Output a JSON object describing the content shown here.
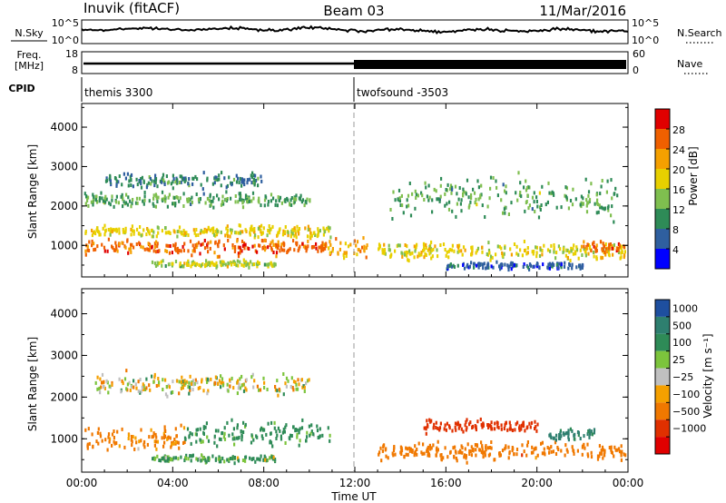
{
  "header": {
    "station": "Inuvik (fitACF)",
    "beam": "Beam 03",
    "date": "11/Mar/2016"
  },
  "noise_panel": {
    "left_label": "N.Sky",
    "right_label": "N.Search",
    "left_ticks": [
      "10^5",
      "10^0"
    ],
    "right_ticks": [
      "10^5",
      "10^0"
    ]
  },
  "freq_panel": {
    "left_label_line1": "Freq.",
    "left_label_line2": "[MHz]",
    "right_label": "Nave",
    "left_ticks": [
      "18",
      "8"
    ],
    "right_ticks": [
      "60",
      "0"
    ]
  },
  "cpid_panel": {
    "label": "CPID",
    "segments": [
      {
        "name": "themis 3300",
        "start_hour": 0
      },
      {
        "name": "twofsound -3503",
        "start_hour": 12
      }
    ]
  },
  "power_panel": {
    "ylabel": "Slant Range [km]",
    "yticks": [
      "4000",
      "3000",
      "2000",
      "1000"
    ],
    "colorbar_label": "Power [dB]",
    "colorbar_ticks": [
      "28",
      "24",
      "20",
      "16",
      "12",
      "8",
      "4"
    ],
    "colors": [
      "#0000ff",
      "#2f5f9f",
      "#2e8b57",
      "#7fbf4f",
      "#e8d000",
      "#f5a000",
      "#f06000",
      "#e00000"
    ]
  },
  "velocity_panel": {
    "ylabel": "Slant Range [km]",
    "yticks": [
      "4000",
      "3000",
      "2000",
      "1000"
    ],
    "colorbar_label": "Velocity [m s⁻¹]",
    "colorbar_ticks": [
      "1000",
      "500",
      "100",
      "25",
      "−25",
      "−100",
      "−500",
      "−1000"
    ],
    "colors": [
      "#1e4f9f",
      "#2e7f6f",
      "#2e8b57",
      "#7cc43c",
      "#c0c0c0",
      "#f5a000",
      "#f07800",
      "#e03000",
      "#e00000"
    ]
  },
  "x_axis": {
    "label": "Time UT",
    "ticks": [
      "00:00",
      "04:00",
      "08:00",
      "12:00",
      "16:00",
      "20:00",
      "00:00"
    ]
  },
  "chart_data": {
    "type": "heatmap",
    "title": "Inuvik (fitACF)   Beam 03   11/Mar/2016",
    "xlabel": "Time UT",
    "ylabel": "Slant Range [km]",
    "xlim_hours": [
      0,
      24
    ],
    "ylim_km": [
      200,
      4600
    ],
    "grid": false,
    "panels": [
      {
        "name": "Power",
        "units": "dB",
        "colorbar_range": [
          0,
          32
        ],
        "scatter_regions": [
          {
            "t_start": 0.1,
            "t_end": 10.9,
            "range_center_km": 950,
            "range_halfwidth_km": 280,
            "value_dB": 26
          },
          {
            "t_start": 0.1,
            "t_end": 10.9,
            "range_center_km": 1350,
            "range_halfwidth_km": 200,
            "value_dB": 18
          },
          {
            "t_start": 0.1,
            "t_end": 10.0,
            "range_center_km": 2150,
            "range_halfwidth_km": 260,
            "value_dB": 12
          },
          {
            "t_start": 1.0,
            "t_end": 8.0,
            "range_center_km": 2650,
            "range_halfwidth_km": 250,
            "value_dB": 9
          },
          {
            "t_start": 3.0,
            "t_end": 8.5,
            "range_center_km": 520,
            "range_halfwidth_km": 120,
            "value_dB": 16
          },
          {
            "t_start": 10.8,
            "t_end": 12.5,
            "range_center_km": 900,
            "range_halfwidth_km": 350,
            "value_dB": 22
          },
          {
            "t_start": 13.0,
            "t_end": 23.9,
            "range_center_km": 850,
            "range_halfwidth_km": 300,
            "value_dB": 18
          },
          {
            "t_start": 16.0,
            "t_end": 22.0,
            "range_center_km": 480,
            "range_halfwidth_km": 120,
            "value_dB": 6
          },
          {
            "t_start": 22.0,
            "t_end": 23.9,
            "range_center_km": 950,
            "range_halfwidth_km": 200,
            "value_dB": 26
          },
          {
            "t_start": 13.5,
            "t_end": 23.5,
            "range_center_km": 2200,
            "range_halfwidth_km": 700,
            "value_dB": 12
          }
        ]
      },
      {
        "name": "Velocity",
        "units": "m s-1",
        "colorbar_range": [
          -1000,
          1000
        ],
        "scatter_regions": [
          {
            "t_start": 0.1,
            "t_end": 4.5,
            "range_center_km": 1000,
            "range_halfwidth_km": 400,
            "value_mps": -200
          },
          {
            "t_start": 4.5,
            "t_end": 10.9,
            "range_center_km": 1100,
            "range_halfwidth_km": 400,
            "value_mps": 200
          },
          {
            "t_start": 0.5,
            "t_end": 10.0,
            "range_center_km": 2300,
            "range_halfwidth_km": 350,
            "value_mps": 0
          },
          {
            "t_start": 3.0,
            "t_end": 8.5,
            "range_center_km": 520,
            "range_halfwidth_km": 120,
            "value_mps": 150
          },
          {
            "t_start": 13.0,
            "t_end": 23.9,
            "range_center_km": 700,
            "range_halfwidth_km": 300,
            "value_mps": -300
          },
          {
            "t_start": 15.0,
            "t_end": 20.0,
            "range_center_km": 1300,
            "range_halfwidth_km": 200,
            "value_mps": -700
          },
          {
            "t_start": 20.5,
            "t_end": 22.5,
            "range_center_km": 1100,
            "range_halfwidth_km": 200,
            "value_mps": 600
          }
        ]
      }
    ]
  }
}
